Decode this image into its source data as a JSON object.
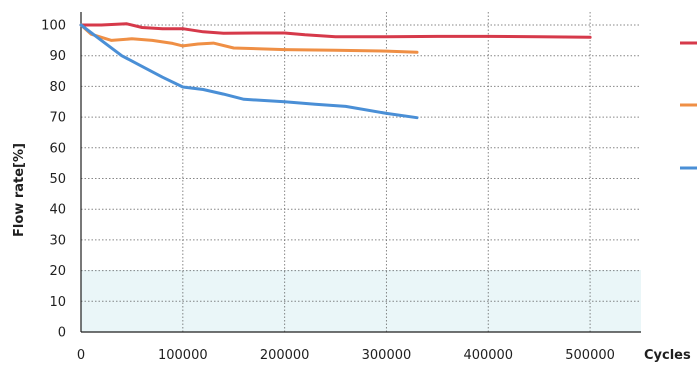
{
  "chart_data": {
    "type": "line",
    "title": "",
    "xlabel": "Cycles",
    "ylabel": "Flow rate[%]",
    "xlim": [
      0,
      550000
    ],
    "ylim": [
      0,
      100
    ],
    "x_ticks": [
      0,
      100000,
      200000,
      300000,
      400000,
      500000
    ],
    "x_tick_labels": [
      "0",
      "100000",
      "200000",
      "300000",
      "400000",
      "500000"
    ],
    "y_ticks": [
      0,
      10,
      20,
      30,
      40,
      50,
      60,
      70,
      80,
      90,
      100
    ],
    "y_tick_labels": [
      "0",
      "10",
      "20",
      "30",
      "40",
      "50",
      "60",
      "70",
      "80",
      "90",
      "100"
    ],
    "grid": true,
    "legend": "right",
    "series": [
      {
        "color": "#d6394a",
        "points": [
          [
            0,
            100
          ],
          [
            20000,
            100
          ],
          [
            45000,
            100.4
          ],
          [
            60000,
            99.2
          ],
          [
            80000,
            98.8
          ],
          [
            100000,
            98.8
          ],
          [
            120000,
            97.8
          ],
          [
            140000,
            97.3
          ],
          [
            170000,
            97.4
          ],
          [
            200000,
            97.4
          ],
          [
            220000,
            96.8
          ],
          [
            250000,
            96.2
          ],
          [
            300000,
            96.2
          ],
          [
            350000,
            96.3
          ],
          [
            400000,
            96.3
          ],
          [
            450000,
            96.2
          ],
          [
            500000,
            96
          ]
        ]
      },
      {
        "color": "#ef8f45",
        "points": [
          [
            0,
            100
          ],
          [
            10000,
            97
          ],
          [
            30000,
            95
          ],
          [
            50000,
            95.5
          ],
          [
            70000,
            95
          ],
          [
            90000,
            94
          ],
          [
            100000,
            93.2
          ],
          [
            115000,
            93.8
          ],
          [
            130000,
            94.1
          ],
          [
            150000,
            92.5
          ],
          [
            200000,
            92
          ],
          [
            250000,
            91.8
          ],
          [
            300000,
            91.5
          ],
          [
            330000,
            91.1
          ]
        ]
      },
      {
        "color": "#4a8fd6",
        "points": [
          [
            0,
            100
          ],
          [
            20000,
            95
          ],
          [
            40000,
            90
          ],
          [
            60000,
            86.5
          ],
          [
            80000,
            83
          ],
          [
            100000,
            79.8
          ],
          [
            120000,
            79
          ],
          [
            140000,
            77.5
          ],
          [
            160000,
            75.8
          ],
          [
            200000,
            75
          ],
          [
            230000,
            74.2
          ],
          [
            260000,
            73.5
          ],
          [
            300000,
            71.2
          ],
          [
            330000,
            69.8
          ]
        ]
      }
    ]
  }
}
